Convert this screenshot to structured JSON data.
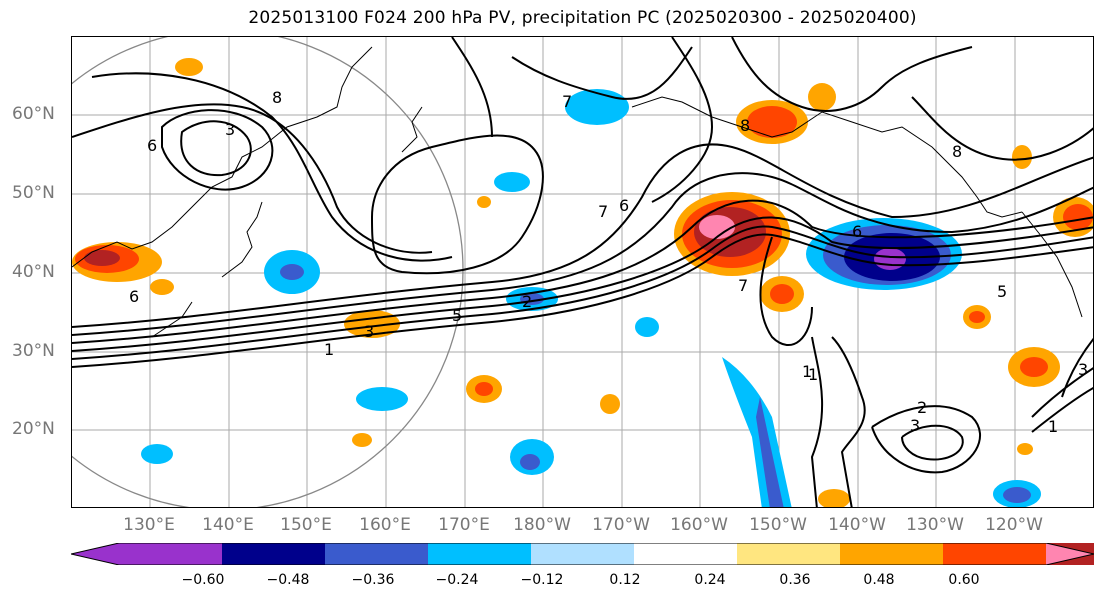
{
  "title": "2025013100 F024 200 hPa PV, precipitation PC (2025020300 - 2025020400)",
  "lat_labels": [
    "60°N",
    "50°N",
    "40°N",
    "30°N",
    "20°N"
  ],
  "lon_labels": [
    "130°E",
    "140°E",
    "150°E",
    "160°E",
    "170°E",
    "180°W",
    "170°W",
    "160°W",
    "150°W",
    "140°W",
    "130°W",
    "120°W"
  ],
  "colorbar": {
    "ticks": [
      "−0.60",
      "−0.48",
      "−0.36",
      "−0.24",
      "−0.12",
      "0.12",
      "0.24",
      "0.36",
      "0.48",
      "0.60"
    ],
    "colors": [
      "#9932cc",
      "#00008b",
      "#3a5bcd",
      "#00bfff",
      "#b0e0ff",
      "#ffffff",
      "#ffe680",
      "#ffa500",
      "#ff4500",
      "#b22222",
      "#ff85b0"
    ]
  },
  "contour_labels": [
    "8",
    "6",
    "3",
    "7",
    "7",
    "6",
    "8",
    "5",
    "3",
    "1",
    "2",
    "1",
    "7",
    "6",
    "8",
    "6",
    "5",
    "1",
    "2",
    "3",
    "1",
    "3"
  ]
}
